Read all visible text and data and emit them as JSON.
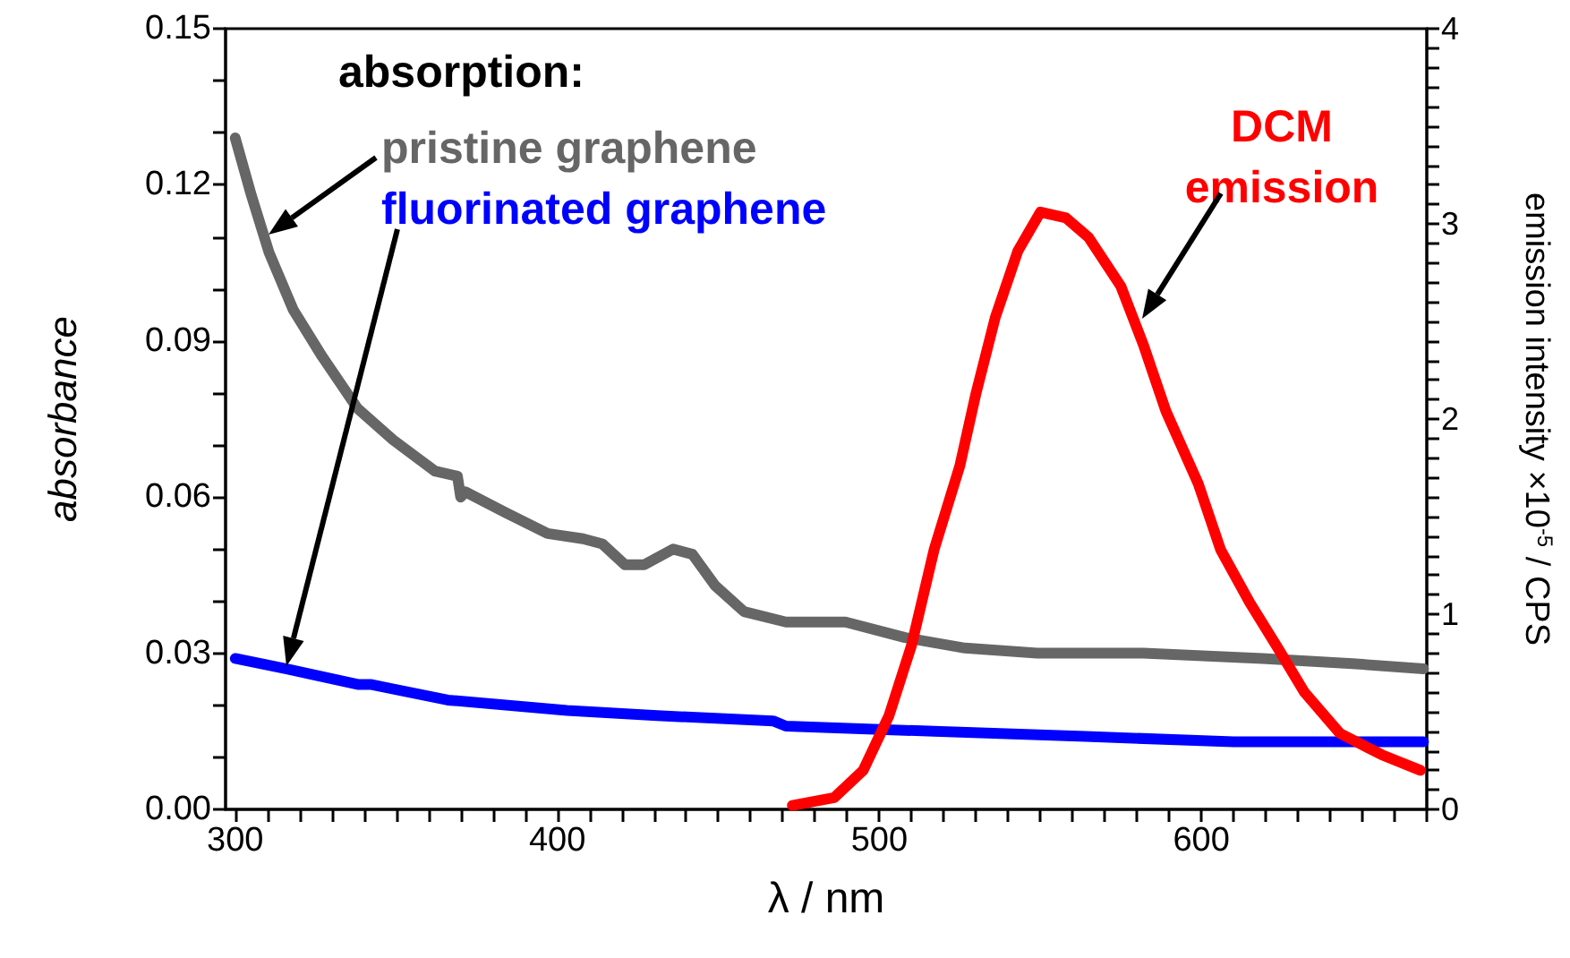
{
  "chart_data": {
    "type": "line",
    "xlabel": "λ / nm",
    "ylabel": "absorbance",
    "y2label": "emission intensity ×10$^{-5}$ / CPS",
    "legend_title": "absorption:",
    "xlim": [
      297,
      670
    ],
    "xticks": [
      300,
      {
        "value": 310,
        "label": null
      },
      {
        "value": 320,
        "label": null
      },
      {
        "value": 330,
        "label": null
      },
      {
        "value": 340,
        "label": null
      },
      {
        "value": 350,
        "label": null
      },
      {
        "value": 360,
        "label": null
      },
      {
        "value": 370,
        "label": null
      },
      {
        "value": 380,
        "label": null
      },
      {
        "value": 390,
        "label": null
      },
      400,
      {
        "value": 410,
        "label": null
      },
      {
        "value": 420,
        "label": null
      },
      {
        "value": 430,
        "label": null
      },
      {
        "value": 440,
        "label": null
      },
      {
        "value": 450,
        "label": null
      },
      {
        "value": 460,
        "label": null
      },
      {
        "value": 470,
        "label": null
      },
      {
        "value": 480,
        "label": null
      },
      {
        "value": 490,
        "label": null
      },
      500,
      {
        "value": 510,
        "label": null
      },
      {
        "value": 520,
        "label": null
      },
      {
        "value": 530,
        "label": null
      },
      {
        "value": 540,
        "label": null
      },
      {
        "value": 550,
        "label": null
      },
      {
        "value": 560,
        "label": null
      },
      {
        "value": 570,
        "label": null
      },
      {
        "value": 580,
        "label": null
      },
      {
        "value": 590,
        "label": null
      },
      600,
      {
        "value": 610,
        "label": null
      },
      {
        "value": 620,
        "label": null
      },
      {
        "value": 630,
        "label": null
      },
      {
        "value": 640,
        "label": null
      },
      {
        "value": 650,
        "label": null
      },
      {
        "value": 660,
        "label": null
      },
      {
        "value": 670,
        "label": null
      }
    ],
    "ylim": [
      0,
      0.15
    ],
    "yticks": [
      {
        "value": 0,
        "label": "0.00"
      },
      {
        "value": 0.01,
        "label": null
      },
      {
        "value": 0.02,
        "label": null
      },
      {
        "value": 0.03,
        "label": "0.03"
      },
      {
        "value": 0.04,
        "label": null
      },
      {
        "value": 0.05,
        "label": null
      },
      {
        "value": 0.06,
        "label": "0.06"
      },
      {
        "value": 0.07,
        "label": null
      },
      {
        "value": 0.08,
        "label": null
      },
      {
        "value": 0.09,
        "label": "0.09"
      },
      {
        "value": 0.1,
        "label": null
      },
      {
        "value": 0.11,
        "label": null
      },
      {
        "value": 0.12,
        "label": "0.12"
      },
      {
        "value": 0.13,
        "label": null
      },
      {
        "value": 0.14,
        "label": null
      },
      {
        "value": 0.15,
        "label": "0.15"
      }
    ],
    "y2lim": [
      0,
      4
    ],
    "y2ticks": [
      0,
      {
        "value": 0.1,
        "label": null
      },
      {
        "value": 0.2,
        "label": null
      },
      {
        "value": 0.3,
        "label": null
      },
      {
        "value": 0.4,
        "label": null
      },
      {
        "value": 0.5,
        "label": null
      },
      {
        "value": 0.6,
        "label": null
      },
      {
        "value": 0.7,
        "label": null
      },
      {
        "value": 0.8,
        "label": null
      },
      {
        "value": 0.9,
        "label": null
      },
      1,
      {
        "value": 1.1,
        "label": null
      },
      {
        "value": 1.2,
        "label": null
      },
      {
        "value": 1.3,
        "label": null
      },
      {
        "value": 1.4,
        "label": null
      },
      {
        "value": 1.5,
        "label": null
      },
      {
        "value": 1.6,
        "label": null
      },
      {
        "value": 1.7,
        "label": null
      },
      {
        "value": 1.8,
        "label": null
      },
      {
        "value": 1.9,
        "label": null
      },
      2,
      {
        "value": 2.1,
        "label": null
      },
      {
        "value": 2.2,
        "label": null
      },
      {
        "value": 2.3,
        "label": null
      },
      {
        "value": 2.4,
        "label": null
      },
      {
        "value": 2.5,
        "label": null
      },
      {
        "value": 2.6,
        "label": null
      },
      {
        "value": 2.7,
        "label": null
      },
      {
        "value": 2.8,
        "label": null
      },
      {
        "value": 2.9,
        "label": null
      },
      3,
      {
        "value": 3.1,
        "label": null
      },
      {
        "value": 3.2,
        "label": null
      },
      {
        "value": 3.3,
        "label": null
      },
      {
        "value": 3.4,
        "label": null
      },
      {
        "value": 3.5,
        "label": null
      },
      {
        "value": 3.6,
        "label": null
      },
      {
        "value": 3.7,
        "label": null
      },
      {
        "value": 3.8,
        "label": null
      },
      {
        "value": 3.9,
        "label": null
      },
      4
    ],
    "grid": false,
    "marker": "none",
    "line_style": "solid",
    "series": [
      {
        "name": "pristine graphene",
        "color": "#666666",
        "x": [
          300,
          305,
          310.5,
          318,
          327,
          338,
          349,
          362,
          369,
          370,
          371.5,
          384,
          397,
          408,
          414,
          421,
          427,
          436,
          442,
          449,
          458,
          471,
          489.5,
          508,
          526.6,
          549,
          582,
          619,
          647,
          669
        ],
        "values": [
          0.129,
          0.118,
          0.107,
          0.096,
          0.087,
          0.077,
          0.071,
          0.065,
          0.064,
          0.06,
          0.061,
          0.057,
          0.053,
          0.052,
          0.051,
          0.047,
          0.047,
          0.05,
          0.049,
          0.043,
          0.038,
          0.036,
          0.036,
          0.033,
          0.031,
          0.03,
          0.03,
          0.029,
          0.028,
          0.027
        ]
      },
      {
        "name": "fluorinated graphene",
        "color": "#0000ff",
        "x": [
          300,
          316,
          338,
          342,
          366,
          403,
          431,
          467,
          471,
          517,
          564,
          610,
          669
        ],
        "values": [
          0.029,
          0.027,
          0.024,
          0.024,
          0.021,
          0.019,
          0.018,
          0.017,
          0.016,
          0.015,
          0.014,
          0.013,
          0.013
        ]
      },
      {
        "name": "DCM emission",
        "color": "#ff0000",
        "axis": "y2",
        "x": [
          473,
          486,
          495,
          503,
          510,
          517,
          525,
          530,
          536,
          543,
          550,
          558,
          565,
          575,
          582,
          589,
          599,
          606,
          615,
          624,
          632,
          643,
          656,
          668
        ],
        "values": [
          0.02,
          0.06,
          0.2,
          0.48,
          0.84,
          1.33,
          1.76,
          2.13,
          2.52,
          2.86,
          3.06,
          3.03,
          2.93,
          2.68,
          2.38,
          2.04,
          1.67,
          1.33,
          1.06,
          0.82,
          0.6,
          0.39,
          0.28,
          0.2
        ]
      }
    ]
  }
}
